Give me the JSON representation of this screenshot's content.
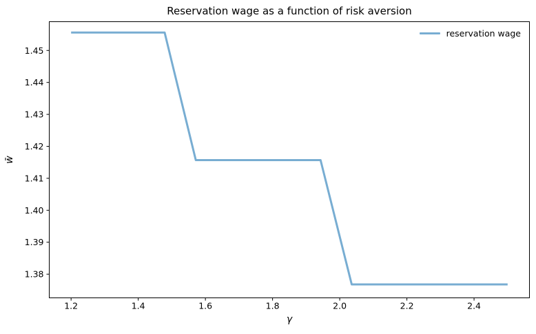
{
  "figure": {
    "background": "#ffffff"
  },
  "chart_data": {
    "type": "line",
    "title": "Reservation wage as a function of risk aversion",
    "xlabel": "γ",
    "ylabel": "w̄",
    "xlim": [
      1.135,
      2.565
    ],
    "ylim": [
      1.3726,
      1.459
    ],
    "x_ticks": [
      1.2,
      1.4,
      1.6,
      1.8,
      2.0,
      2.2,
      2.4
    ],
    "x_tick_labels": [
      "1.2",
      "1.4",
      "1.6",
      "1.8",
      "2.0",
      "2.2",
      "2.4"
    ],
    "y_ticks": [
      1.38,
      1.39,
      1.4,
      1.41,
      1.42,
      1.43,
      1.44,
      1.45
    ],
    "y_tick_labels": [
      "1.38",
      "1.39",
      "1.40",
      "1.41",
      "1.42",
      "1.43",
      "1.44",
      "1.45"
    ],
    "grid": false,
    "legend_position": "upper right",
    "legend_frame": false,
    "line_color": "#78add2",
    "line_width": 3,
    "spine_color": "#000000",
    "series": [
      {
        "name": "reservation wage",
        "x": [
          1.2,
          1.2929,
          1.3857,
          1.4786,
          1.5714,
          1.6643,
          1.7571,
          1.85,
          1.9429,
          2.0357,
          2.1286,
          2.2214,
          2.3143,
          2.4071,
          2.5
        ],
        "y": [
          1.4556,
          1.4556,
          1.4556,
          1.4556,
          1.4157,
          1.4157,
          1.4157,
          1.4157,
          1.4157,
          1.3768,
          1.3768,
          1.3768,
          1.3768,
          1.3768,
          1.3768
        ]
      }
    ]
  }
}
